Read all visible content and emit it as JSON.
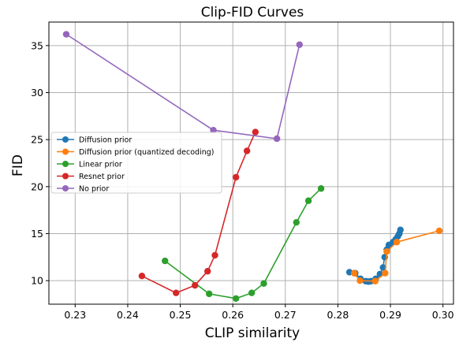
{
  "chart_data": {
    "type": "line",
    "title": "Clip-FID Curves",
    "xlabel": "CLIP similarity",
    "ylabel": "FID",
    "xlim": [
      0.225,
      0.302
    ],
    "ylim": [
      7.5,
      37.5
    ],
    "xticks": [
      0.23,
      0.24,
      0.25,
      0.26,
      0.27,
      0.28,
      0.29,
      0.3
    ],
    "xtick_labels": [
      "0.23",
      "0.24",
      "0.25",
      "0.26",
      "0.27",
      "0.28",
      "0.29",
      "0.30"
    ],
    "yticks": [
      10,
      15,
      20,
      25,
      30,
      35
    ],
    "ytick_labels": [
      "10",
      "15",
      "20",
      "25",
      "30",
      "35"
    ],
    "grid": true,
    "legend_position": "center-left",
    "series": [
      {
        "name": "Diffusion prior",
        "color": "#1f77b4",
        "points": [
          [
            0.2822,
            10.9
          ],
          [
            0.2833,
            10.8
          ],
          [
            0.2843,
            10.2
          ],
          [
            0.2853,
            9.95
          ],
          [
            0.2858,
            9.9
          ],
          [
            0.2863,
            9.95
          ],
          [
            0.2872,
            10.2
          ],
          [
            0.288,
            10.7
          ],
          [
            0.2886,
            11.4
          ],
          [
            0.2889,
            12.5
          ],
          [
            0.2893,
            13.3
          ],
          [
            0.2897,
            13.8
          ],
          [
            0.2905,
            14.1
          ],
          [
            0.291,
            14.4
          ],
          [
            0.2914,
            14.7
          ],
          [
            0.2917,
            15.0
          ],
          [
            0.2919,
            15.4
          ]
        ]
      },
      {
        "name": "Diffusion prior (quantized decoding)",
        "color": "#ff7f0e",
        "points": [
          [
            0.2831,
            10.8
          ],
          [
            0.2842,
            10.0
          ],
          [
            0.2871,
            9.95
          ],
          [
            0.289,
            10.8
          ],
          [
            0.2893,
            13.1
          ],
          [
            0.2912,
            14.1
          ],
          [
            0.2993,
            15.3
          ]
        ]
      },
      {
        "name": "Linear prior",
        "color": "#2ca02c",
        "points": [
          [
            0.2471,
            12.1
          ],
          [
            0.2555,
            8.6
          ],
          [
            0.2606,
            8.1
          ],
          [
            0.2636,
            8.7
          ],
          [
            0.2659,
            9.7
          ],
          [
            0.2721,
            16.2
          ],
          [
            0.2744,
            18.5
          ],
          [
            0.2768,
            19.8
          ]
        ]
      },
      {
        "name": "Resnet prior",
        "color": "#d62728",
        "points": [
          [
            0.2427,
            10.5
          ],
          [
            0.2492,
            8.7
          ],
          [
            0.2528,
            9.5
          ],
          [
            0.2552,
            11.0
          ],
          [
            0.2566,
            12.7
          ],
          [
            0.2606,
            21.0
          ],
          [
            0.2627,
            23.8
          ],
          [
            0.2643,
            25.8
          ]
        ]
      },
      {
        "name": "No prior",
        "color": "#9467bd",
        "points": [
          [
            0.2283,
            36.2
          ],
          [
            0.2563,
            26.0
          ],
          [
            0.2684,
            25.1
          ],
          [
            0.2727,
            35.1
          ]
        ]
      }
    ]
  }
}
